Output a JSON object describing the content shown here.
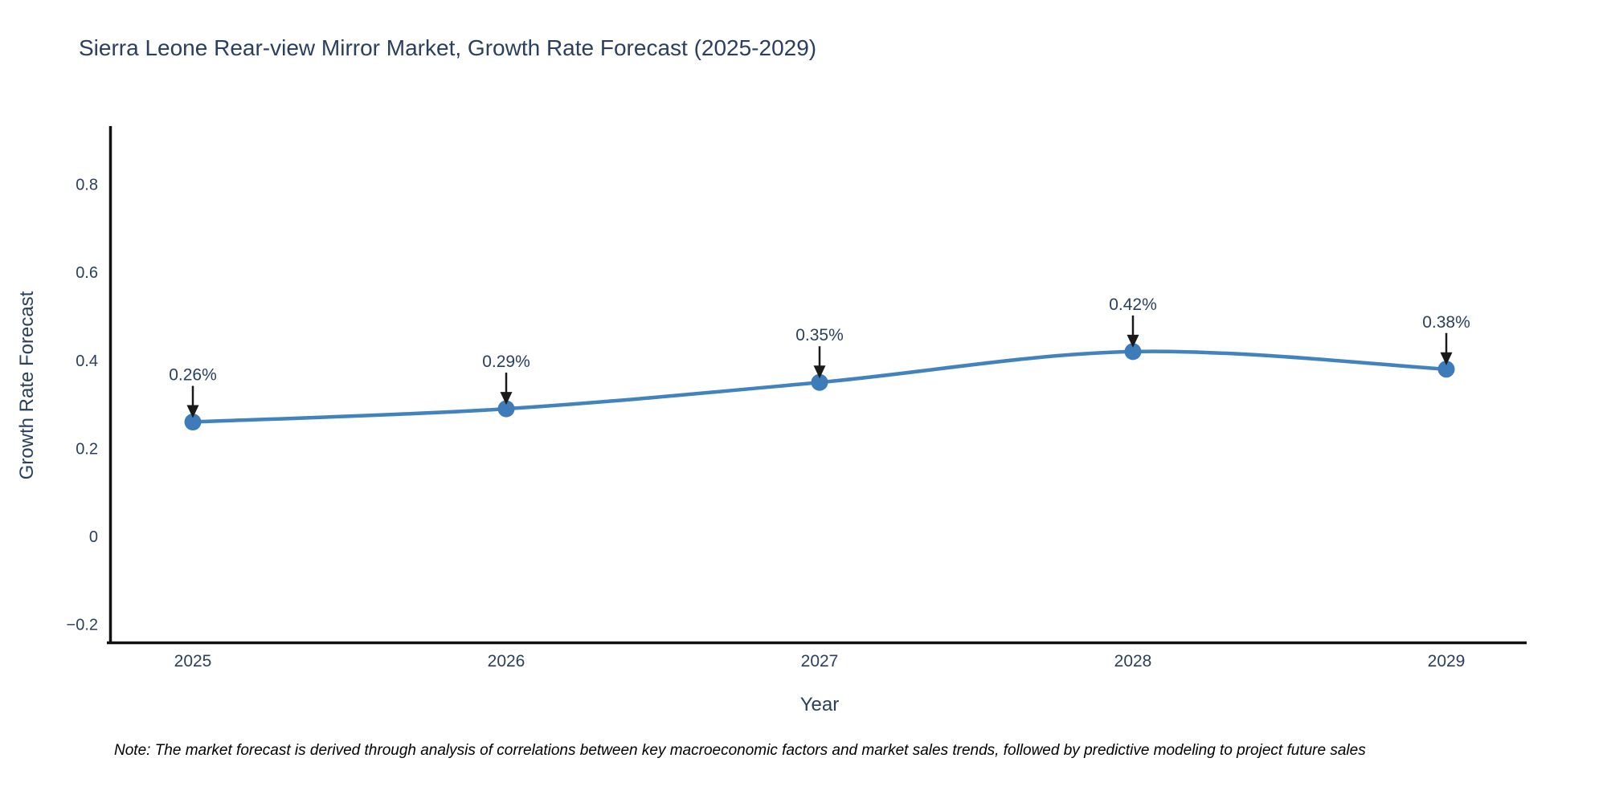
{
  "note": "Note: The market forecast is derived through analysis of correlations between key macroeconomic factors and market sales trends, followed by predictive modeling to project future sales",
  "chart_data": {
    "type": "line",
    "title": "Sierra Leone Rear-view Mirror Market, Growth Rate Forecast (2025-2029)",
    "xlabel": "Year",
    "ylabel": "Growth Rate Forecast",
    "x": [
      "2025",
      "2026",
      "2027",
      "2028",
      "2029"
    ],
    "series": [
      {
        "name": "Growth Rate Forecast",
        "values": [
          0.26,
          0.29,
          0.35,
          0.42,
          0.38
        ]
      }
    ],
    "point_labels": [
      "0.26%",
      "0.29%",
      "0.35%",
      "0.42%",
      "0.38%"
    ],
    "yticks": [
      0.8,
      0.6,
      0.4,
      0.2,
      0,
      -0.2
    ],
    "ylim": [
      -0.25,
      0.93
    ],
    "grid": false,
    "legend_position": "none",
    "line_shape": "spline",
    "colors": {
      "line": "#4282bd",
      "marker": "#3d7cb8",
      "axis": "#111111",
      "text": "#2a3f5f",
      "arrow": "#1a1a1a",
      "background": "#ffffff"
    }
  }
}
